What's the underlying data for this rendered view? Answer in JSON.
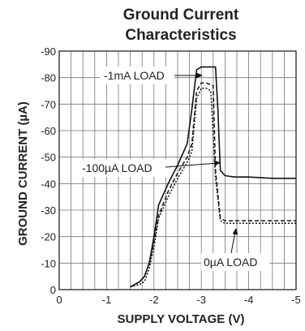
{
  "chart_data": {
    "type": "line",
    "title": "Ground Current Characteristics",
    "title_lines": [
      "Ground Current",
      "Characteristics"
    ],
    "xlabel": "SUPPLY VOLTAGE (V)",
    "ylabel": "GROUND CURRENT (µA)",
    "xlim": [
      0,
      -5
    ],
    "ylim": [
      0,
      -90
    ],
    "x_ticks": [
      "0",
      "-1",
      "-2",
      "-3",
      "-4",
      "-5"
    ],
    "y_ticks": [
      "0",
      "-10",
      "-20",
      "-30",
      "-40",
      "-50",
      "-60",
      "-70",
      "-80",
      "-90"
    ],
    "grid": true,
    "series": [
      {
        "name": "-1mA LOAD",
        "style": "solid",
        "x": [
          -1.5,
          -1.7,
          -1.8,
          -1.9,
          -2.0,
          -2.1,
          -2.3,
          -2.5,
          -2.7,
          -2.8,
          -2.9,
          -3.0,
          -3.1,
          -3.3,
          -3.35,
          -3.4,
          -3.5,
          -3.7,
          -4.0,
          -4.5,
          -5.0
        ],
        "y": [
          -1,
          -3,
          -5,
          -10,
          -20,
          -32,
          -40,
          -47,
          -55,
          -68,
          -83,
          -84,
          -84,
          -84,
          -68,
          -45,
          -43,
          -42.5,
          -42.5,
          -42,
          -42
        ]
      },
      {
        "name": "-100µA LOAD",
        "style": "dashed",
        "x": [
          -1.5,
          -1.7,
          -1.8,
          -1.9,
          -2.0,
          -2.1,
          -2.3,
          -2.5,
          -2.7,
          -2.8,
          -2.9,
          -3.0,
          -3.1,
          -3.25,
          -3.3,
          -3.4,
          -3.5,
          -4.0,
          -5.0
        ],
        "y": [
          -1,
          -3,
          -5,
          -10,
          -18,
          -28,
          -37,
          -44,
          -50,
          -55,
          -75,
          -78,
          -78,
          -77,
          -45,
          -27,
          -26,
          -26,
          -26
        ]
      },
      {
        "name": "0µA LOAD",
        "style": "dotted",
        "x": [
          -1.5,
          -1.7,
          -1.8,
          -1.9,
          -2.0,
          -2.1,
          -2.3,
          -2.5,
          -2.7,
          -2.8,
          -2.9,
          -3.0,
          -3.1,
          -3.2,
          -3.3,
          -3.4,
          -3.5,
          -4.0,
          -5.0
        ],
        "y": [
          -1,
          -2,
          -3,
          -8,
          -16,
          -27,
          -35,
          -42,
          -48,
          -52,
          -72,
          -76,
          -76,
          -75,
          -42,
          -26,
          -25,
          -25,
          -25
        ]
      }
    ],
    "annotations": [
      "-1mA LOAD",
      "-100µA LOAD",
      "0µA LOAD"
    ],
    "colors": {
      "line": "#111111",
      "grid": "#777777",
      "background": "#ffffff"
    }
  }
}
